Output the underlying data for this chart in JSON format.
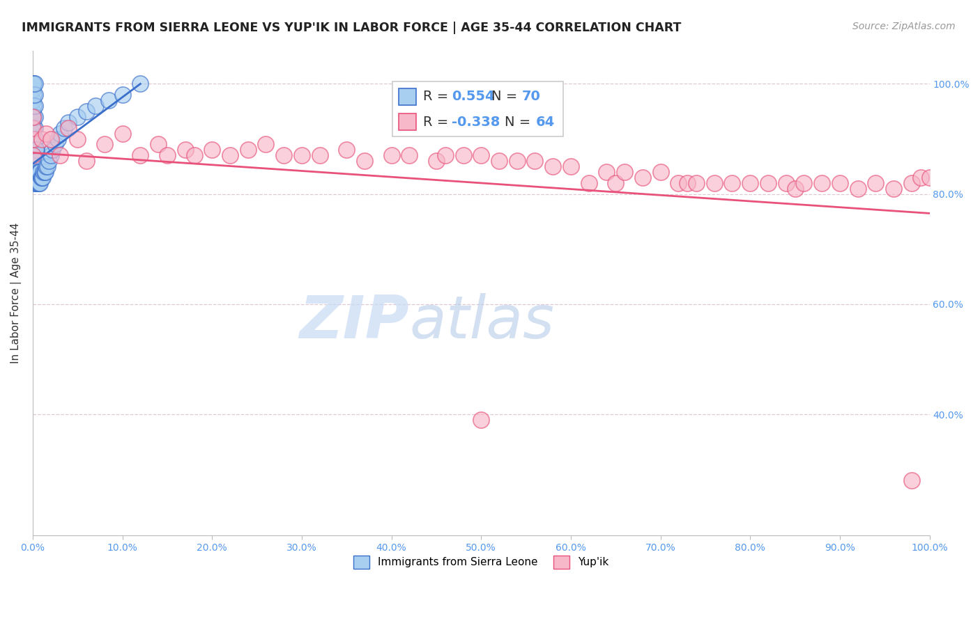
{
  "title": "IMMIGRANTS FROM SIERRA LEONE VS YUP'IK IN LABOR FORCE | AGE 35-44 CORRELATION CHART",
  "source_text": "Source: ZipAtlas.com",
  "ylabel": "In Labor Force | Age 35-44",
  "legend_label1": "Immigrants from Sierra Leone",
  "legend_label2": "Yup'ik",
  "R1": 0.554,
  "N1": 70,
  "R2": -0.338,
  "N2": 64,
  "color1": "#a8cef0",
  "color2": "#f7b8ca",
  "line1_color": "#3b6fcc",
  "line2_color": "#e8527a",
  "background_color": "#ffffff",
  "grid_color": "#ddc8d4",
  "xmin": 0.0,
  "xmax": 1.0,
  "ymin": 0.18,
  "ymax": 1.06,
  "ytick_vals": [
    0.4,
    0.6,
    0.8,
    1.0
  ],
  "xtick_vals": [
    0.0,
    0.1,
    0.2,
    0.3,
    0.4,
    0.5,
    0.6,
    0.7,
    0.8,
    0.9,
    1.0
  ],
  "blue_x": [
    0.0,
    0.0,
    0.0,
    0.0,
    0.0,
    0.0,
    0.0,
    0.0,
    0.0,
    0.0,
    0.001,
    0.001,
    0.001,
    0.001,
    0.001,
    0.001,
    0.001,
    0.001,
    0.001,
    0.001,
    0.002,
    0.002,
    0.002,
    0.002,
    0.002,
    0.002,
    0.002,
    0.002,
    0.002,
    0.002,
    0.003,
    0.003,
    0.003,
    0.003,
    0.003,
    0.004,
    0.004,
    0.004,
    0.004,
    0.005,
    0.005,
    0.005,
    0.006,
    0.006,
    0.007,
    0.007,
    0.008,
    0.008,
    0.009,
    0.01,
    0.011,
    0.012,
    0.013,
    0.014,
    0.015,
    0.016,
    0.018,
    0.02,
    0.022,
    0.025,
    0.028,
    0.03,
    0.035,
    0.04,
    0.05,
    0.06,
    0.07,
    0.085,
    0.1,
    0.12
  ],
  "blue_y": [
    0.87,
    0.89,
    0.91,
    0.93,
    0.95,
    0.97,
    0.99,
    1.0,
    1.0,
    1.0,
    0.84,
    0.86,
    0.88,
    0.9,
    0.92,
    0.94,
    0.96,
    0.98,
    1.0,
    1.0,
    0.82,
    0.84,
    0.86,
    0.88,
    0.9,
    0.92,
    0.94,
    0.96,
    0.98,
    1.0,
    0.82,
    0.84,
    0.86,
    0.88,
    0.9,
    0.82,
    0.84,
    0.86,
    0.88,
    0.82,
    0.84,
    0.86,
    0.82,
    0.84,
    0.82,
    0.84,
    0.82,
    0.84,
    0.83,
    0.83,
    0.83,
    0.84,
    0.84,
    0.84,
    0.85,
    0.85,
    0.86,
    0.87,
    0.88,
    0.89,
    0.9,
    0.91,
    0.92,
    0.93,
    0.94,
    0.95,
    0.96,
    0.97,
    0.98,
    1.0
  ],
  "pink_x": [
    0.0,
    0.0,
    0.0,
    0.0,
    0.01,
    0.015,
    0.02,
    0.03,
    0.04,
    0.05,
    0.06,
    0.08,
    0.1,
    0.12,
    0.14,
    0.15,
    0.17,
    0.18,
    0.2,
    0.22,
    0.24,
    0.26,
    0.28,
    0.3,
    0.32,
    0.35,
    0.37,
    0.4,
    0.42,
    0.45,
    0.46,
    0.48,
    0.5,
    0.52,
    0.54,
    0.56,
    0.58,
    0.6,
    0.62,
    0.64,
    0.65,
    0.66,
    0.68,
    0.7,
    0.72,
    0.73,
    0.74,
    0.76,
    0.78,
    0.8,
    0.82,
    0.84,
    0.85,
    0.86,
    0.88,
    0.9,
    0.92,
    0.94,
    0.96,
    0.98,
    0.99,
    1.0,
    0.5,
    0.98
  ],
  "pink_y": [
    0.87,
    0.9,
    0.92,
    0.94,
    0.9,
    0.91,
    0.9,
    0.87,
    0.92,
    0.9,
    0.86,
    0.89,
    0.91,
    0.87,
    0.89,
    0.87,
    0.88,
    0.87,
    0.88,
    0.87,
    0.88,
    0.89,
    0.87,
    0.87,
    0.87,
    0.88,
    0.86,
    0.87,
    0.87,
    0.86,
    0.87,
    0.87,
    0.87,
    0.86,
    0.86,
    0.86,
    0.85,
    0.85,
    0.82,
    0.84,
    0.82,
    0.84,
    0.83,
    0.84,
    0.82,
    0.82,
    0.82,
    0.82,
    0.82,
    0.82,
    0.82,
    0.82,
    0.81,
    0.82,
    0.82,
    0.82,
    0.81,
    0.82,
    0.81,
    0.82,
    0.83,
    0.83,
    0.39,
    0.28
  ],
  "pink_trend_x0": 0.0,
  "pink_trend_x1": 1.0,
  "pink_trend_y0": 0.875,
  "pink_trend_y1": 0.765,
  "blue_trend_x0": 0.0,
  "blue_trend_x1": 0.12,
  "blue_trend_y0": 0.855,
  "blue_trend_y1": 1.0
}
